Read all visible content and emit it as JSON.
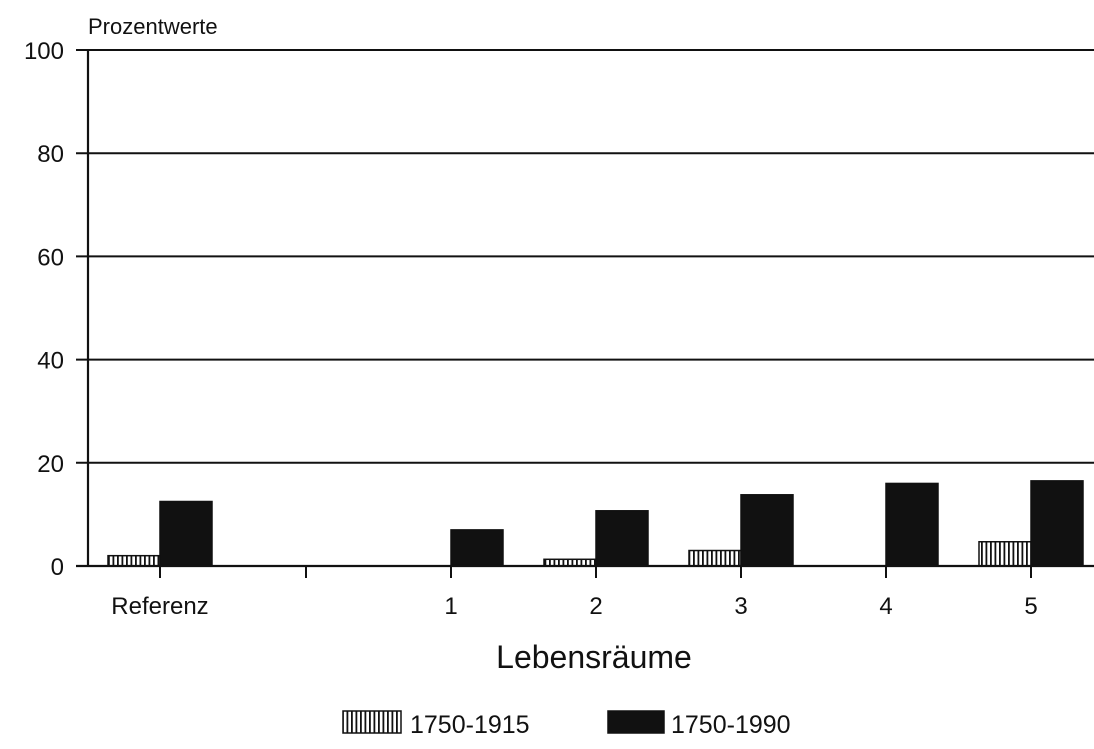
{
  "chart_data": {
    "type": "bar",
    "ylabel": "Prozentwerte",
    "xlabel": "Lebensräume",
    "ylim": [
      0,
      100
    ],
    "yticks": [
      0,
      20,
      40,
      60,
      80,
      100
    ],
    "grid": true,
    "legend_position": "bottom-center",
    "categories": [
      "Referenz",
      "1",
      "2",
      "3",
      "4",
      "5"
    ],
    "series": [
      {
        "name": "1750-1915",
        "style": "hatched",
        "color": "#ffffff",
        "values": [
          2,
          0,
          1.3,
          3,
          0,
          4.7
        ]
      },
      {
        "name": "1750-1990",
        "style": "solid",
        "color": "#111111",
        "values": [
          12.5,
          7,
          10.7,
          13.8,
          16,
          16.5
        ]
      }
    ]
  }
}
